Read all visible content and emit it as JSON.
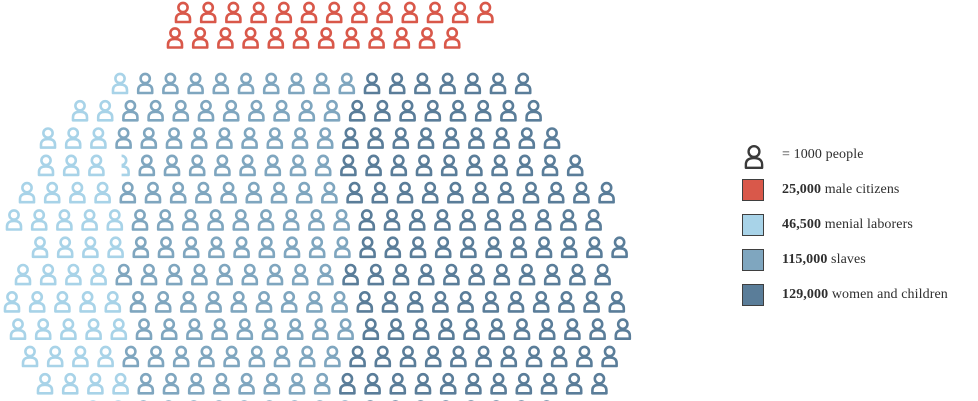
{
  "chart_data": {
    "type": "pictogram",
    "unit": {
      "value": 1000,
      "label": "= 1000 people"
    },
    "series": [
      {
        "name": "male citizens",
        "value": 25000,
        "display_value": "25,000",
        "label": "male citizens",
        "color": "#d9584a"
      },
      {
        "name": "menial laborers",
        "value": 46500,
        "display_value": "46,500",
        "label": "menial laborers",
        "color": "#a8d3e8"
      },
      {
        "name": "slaves",
        "value": 115000,
        "display_value": "115,000",
        "label": "slaves",
        "color": "#7fa6bf"
      },
      {
        "name": "women and children",
        "value": 129000,
        "display_value": "129,000",
        "label": "women and children",
        "color": "#5a7d99"
      }
    ]
  }
}
